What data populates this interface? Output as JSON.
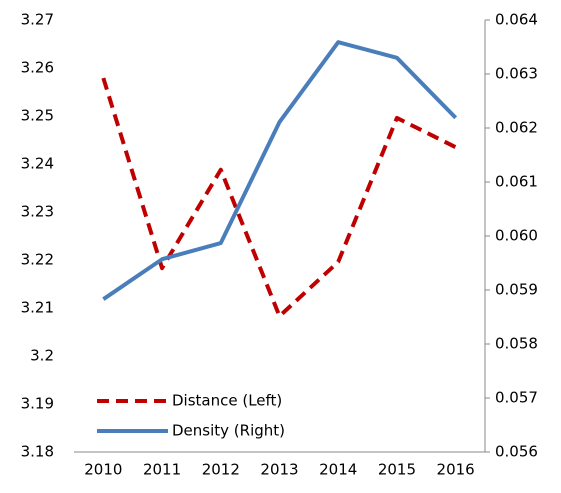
{
  "chart_data": {
    "type": "line",
    "categories": [
      "2010",
      "2011",
      "2012",
      "2013",
      "2014",
      "2015",
      "2016"
    ],
    "series": [
      {
        "name": "Distance (Left)",
        "color": "#c00000",
        "dashed": true,
        "axis": "y",
        "values": [
          3.2579,
          3.2183,
          3.2388,
          3.2083,
          3.2196,
          3.2496,
          3.2435
        ]
      },
      {
        "name": "Density (Right)",
        "color": "#4a7ebb",
        "dashed": false,
        "axis": "y2",
        "values": [
          0.05883,
          0.05957,
          0.05987,
          0.06211,
          0.06359,
          0.0633,
          0.06219
        ]
      }
    ],
    "ylim": [
      3.18,
      3.27
    ],
    "yticks": [
      3.18,
      3.19,
      3.2,
      3.21,
      3.22,
      3.23,
      3.24,
      3.25,
      3.26,
      3.27
    ],
    "y2lim": [
      0.056,
      0.064
    ],
    "y2ticks": [
      0.056,
      0.057,
      0.058,
      0.059,
      {
        "value": 0.06,
        "label": "0.060"
      },
      0.061,
      0.062,
      0.063,
      0.064
    ],
    "legend": "lower left"
  }
}
